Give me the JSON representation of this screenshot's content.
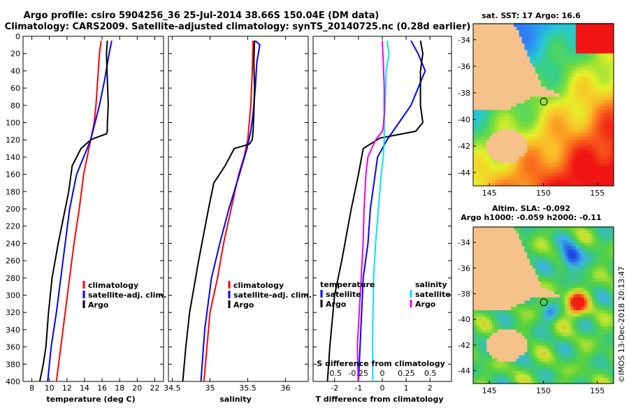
{
  "chart_data": [
    {
      "type": "line",
      "title_line1": "Argo profile: csiro 5904256_36 25-Jul-2014 38.66S 150.04E (DM data)",
      "title_line2": "Climatology: CARS2009. Satellite-adjusted climatology: synTS_20140725.nc (0.28d earlier)",
      "xlabel": "temperature (deg C)",
      "xlim": [
        7,
        23
      ],
      "xticks": [
        "8",
        "10",
        "12",
        "14",
        "16",
        "18",
        "20",
        "22"
      ],
      "xtick_values": [
        8,
        10,
        12,
        14,
        16,
        18,
        20,
        22
      ],
      "ylim": [
        0,
        400
      ],
      "yticks": [
        "0",
        "20",
        "40",
        "60",
        "80",
        "100",
        "120",
        "140",
        "160",
        "180",
        "200",
        "220",
        "240",
        "260",
        "280",
        "300",
        "320",
        "340",
        "360",
        "380",
        "400"
      ],
      "ytick_values": [
        0,
        20,
        40,
        60,
        80,
        100,
        120,
        140,
        160,
        180,
        200,
        220,
        240,
        260,
        280,
        300,
        320,
        340,
        360,
        380,
        400
      ],
      "legend": [
        "climatology",
        "satellite-adj. clim.",
        "Argo"
      ],
      "series": [
        {
          "name": "climatology",
          "color": "#ff0000",
          "x": [
            15.9,
            15.7,
            15.5,
            15.3,
            15.1,
            14.7,
            14.3,
            13.9,
            13.4,
            12.8,
            12.3,
            11.8,
            11.3,
            10.8
          ],
          "depth": [
            5,
            20,
            50,
            80,
            100,
            120,
            140,
            160,
            200,
            240,
            280,
            320,
            360,
            400
          ]
        },
        {
          "name": "satellite-adj. clim.",
          "color": "#0000ff",
          "x": [
            17.1,
            17.0,
            16.8,
            16.3,
            15.7,
            15.2,
            14.7,
            13.9,
            13.1,
            12.3,
            11.8,
            11.3,
            10.8,
            10.2,
            9.8
          ],
          "depth": [
            5,
            10,
            20,
            50,
            80,
            100,
            120,
            140,
            160,
            200,
            240,
            280,
            320,
            360,
            400
          ]
        },
        {
          "name": "Argo",
          "color": "#000000",
          "x": [
            16.6,
            16.5,
            16.6,
            16.7,
            16.6,
            16.6,
            16.5,
            15.4,
            14.7,
            13.6,
            12.6,
            12.2,
            11.8,
            11.0,
            10.3,
            9.9,
            9.6,
            9.3,
            8.9
          ],
          "depth": [
            5,
            20,
            50,
            80,
            100,
            110,
            113,
            117,
            120,
            130,
            150,
            180,
            200,
            240,
            280,
            320,
            360,
            380,
            400
          ]
        }
      ]
    },
    {
      "type": "line",
      "xlabel": "salinity",
      "xlim": [
        34.45,
        36.3
      ],
      "xticks": [
        "34.5",
        "35",
        "35.5",
        "36"
      ],
      "xtick_values": [
        34.5,
        35,
        35.5,
        36
      ],
      "ylim": [
        0,
        400
      ],
      "legend": [
        "climatology",
        "satellite-adj. clim.",
        "Argo"
      ],
      "series": [
        {
          "name": "climatology",
          "color": "#ff0000",
          "x": [
            35.57,
            35.56,
            35.54,
            35.52,
            35.5,
            35.45,
            35.38,
            35.28,
            35.18,
            35.1,
            35.0,
            34.92
          ],
          "depth": [
            5,
            40,
            80,
            100,
            120,
            140,
            160,
            200,
            240,
            280,
            320,
            400
          ]
        },
        {
          "name": "satellite-adj. clim.",
          "color": "#0000ff",
          "x": [
            35.6,
            35.66,
            35.62,
            35.6,
            35.57,
            35.54,
            35.49,
            35.39,
            35.25,
            35.13,
            35.02,
            34.93,
            34.88
          ],
          "depth": [
            5,
            10,
            30,
            60,
            90,
            110,
            130,
            160,
            200,
            240,
            280,
            340,
            400
          ]
        },
        {
          "name": "Argo",
          "color": "#000000",
          "x": [
            35.59,
            35.58,
            35.59,
            35.58,
            35.57,
            35.56,
            35.52,
            35.32,
            35.2,
            35.05,
            34.98,
            34.85,
            34.73,
            34.68,
            34.64
          ],
          "depth": [
            5,
            30,
            60,
            90,
            110,
            120,
            125,
            130,
            150,
            170,
            200,
            260,
            320,
            360,
            400
          ]
        }
      ]
    },
    {
      "type": "line",
      "xlabel": "T difference from climatology",
      "xlabel2": "S difference from climatology",
      "xlim": [
        -2.9,
        2.9
      ],
      "xticks": [
        "-2",
        "-1",
        "0",
        "1",
        "2"
      ],
      "xtick_values": [
        -2,
        -1,
        0,
        1,
        2
      ],
      "xticks_s": [
        "-0.5",
        "-0.25",
        "0",
        "0.25",
        "0.5"
      ],
      "xtick_values_s": [
        -0.5,
        -0.25,
        0,
        0.25,
        0.5
      ],
      "ylim": [
        0,
        400
      ],
      "legend_left_title": "temperature",
      "legend_right_title": "salinity",
      "legend_left": [
        "satellite",
        "Argo"
      ],
      "legend_right": [
        "satellite",
        "Argo"
      ],
      "series": [
        {
          "name": "temperature satellite",
          "color": "#0000ff",
          "x": [
            1.2,
            1.5,
            1.8,
            1.2,
            0.7,
            0.2,
            -0.2,
            -0.3,
            -0.5,
            -0.6,
            -0.8,
            -0.9,
            -1.0
          ],
          "depth": [
            5,
            20,
            40,
            80,
            100,
            120,
            140,
            160,
            200,
            240,
            280,
            340,
            400
          ]
        },
        {
          "name": "temperature Argo",
          "color": "#000000",
          "x": [
            1.6,
            1.7,
            1.6,
            1.6,
            1.7,
            1.4,
            -0.1,
            -0.8,
            -1.0,
            -1.3,
            -1.7,
            -2.0,
            -2.2,
            -2.3
          ],
          "depth": [
            5,
            20,
            40,
            80,
            100,
            110,
            118,
            130,
            160,
            200,
            260,
            300,
            360,
            400
          ]
        },
        {
          "name": "salinity satellite",
          "color": "#00e5ee",
          "x": [
            0.05,
            0.07,
            0.04,
            0.03,
            0.02,
            0.02,
            0.01,
            -0.01,
            -0.04,
            -0.07,
            -0.09,
            -0.1,
            -0.1
          ],
          "depth": [
            5,
            20,
            40,
            80,
            100,
            120,
            140,
            160,
            200,
            240,
            280,
            340,
            400
          ]
        },
        {
          "name": "salinity Argo",
          "color": "#ee00ee",
          "x": [
            0.0,
            0.01,
            0.02,
            0.02,
            0.01,
            0.0,
            -0.07,
            -0.15,
            -0.17,
            -0.19,
            -0.2,
            -0.22,
            -0.24,
            -0.26,
            -0.25
          ],
          "depth": [
            5,
            30,
            60,
            90,
            105,
            110,
            120,
            140,
            160,
            200,
            240,
            280,
            320,
            360,
            400
          ]
        }
      ]
    }
  ],
  "maps": [
    {
      "title": "sat. SST: 17 Argo: 16.6",
      "subtitle": "",
      "lon_ticks": [
        "145",
        "150",
        "155"
      ],
      "lon_values": [
        145,
        150,
        155
      ],
      "lat_ticks": [
        "-34",
        "-36",
        "-38",
        "-40",
        "-42",
        "-44"
      ],
      "lat_values": [
        -34,
        -36,
        -38,
        -40,
        -42,
        -44
      ],
      "lon_range": [
        143.5,
        156.5
      ],
      "lat_range": [
        -45,
        -32.8
      ],
      "argo_position": {
        "lon": 150.04,
        "lat": -38.66
      }
    },
    {
      "title": "Altim. SLA: -0.092",
      "subtitle": "Argo h1000: -0.059 h2000: -0.11",
      "lon_ticks": [
        "145",
        "150",
        "155"
      ],
      "lon_values": [
        145,
        150,
        155
      ],
      "lat_ticks": [
        "-34",
        "-36",
        "-38",
        "-40",
        "-42",
        "-44"
      ],
      "lat_values": [
        -34,
        -36,
        -38,
        -40,
        -42,
        -44
      ],
      "lon_range": [
        143.5,
        156.5
      ],
      "lat_range": [
        -45,
        -32.8
      ],
      "argo_position": {
        "lon": 150.04,
        "lat": -38.66
      }
    }
  ],
  "watermark": "©IMOS 13-Dec-2018 20:13:47",
  "colors": {
    "land": "#f5c28c",
    "climatology": "#ff0000",
    "satellite": "#0000ff",
    "argo": "#000000",
    "sal_sat": "#00e5ee",
    "sal_argo": "#ee00ee"
  }
}
